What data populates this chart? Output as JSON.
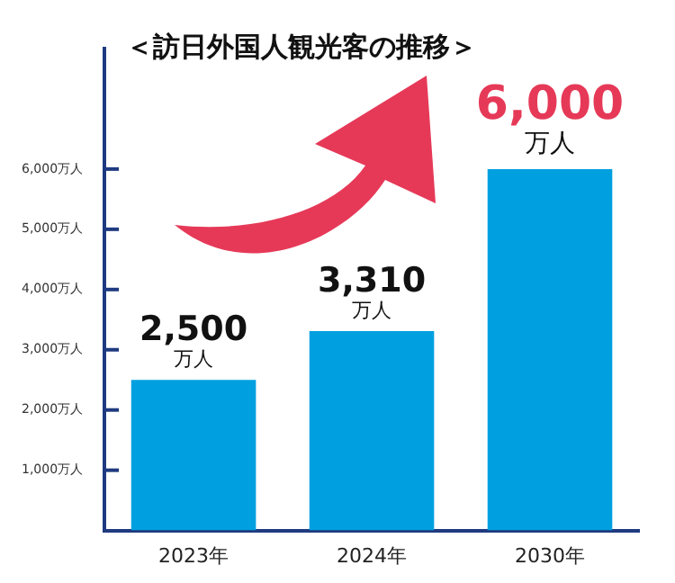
{
  "chart_data": {
    "type": "bar",
    "title": "＜訪日外国人観光客の推移＞",
    "categories": [
      "2023年",
      "2024年",
      "2030年"
    ],
    "values": [
      2500,
      3310,
      6000
    ],
    "color": "#00a0e0",
    "value_labels": [
      "2,500\n万人",
      "3,310\n万人",
      "6,000\n万人"
    ],
    "ylim": [
      0,
      8000
    ],
    "yticks": [
      {
        "value": 1000,
        "label": "1,000万人"
      },
      {
        "value": 2000,
        "label": "2,000万人"
      },
      {
        "value": 3000,
        "label": "3,000万人"
      },
      {
        "value": 4000,
        "label": "4,000万人"
      },
      {
        "value": 5000,
        "label": "5,000万人"
      },
      {
        "value": 6000,
        "label": "6,000万人"
      }
    ],
    "grid": false,
    "legend": false
  }
}
